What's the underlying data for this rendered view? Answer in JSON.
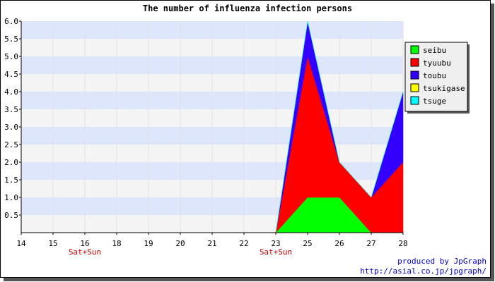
{
  "chart_data": {
    "type": "area",
    "stacked": true,
    "title": "The number of influenza infection persons",
    "x": [
      "14",
      "15",
      "16",
      "18",
      "19",
      "20",
      "21",
      "22",
      "23",
      "25",
      "26",
      "27",
      "28"
    ],
    "weekend_labels": [
      {
        "x": "16",
        "text": "Sat+Sun"
      },
      {
        "x": "23",
        "text": "Sat+Sun"
      }
    ],
    "ylim": [
      0,
      6.0
    ],
    "yticks": [
      "0.5",
      "1.0",
      "1.5",
      "2.0",
      "2.5",
      "3.0",
      "3.5",
      "4.0",
      "4.5",
      "5.0",
      "5.5",
      "6.0"
    ],
    "grid": true,
    "legend_position": "top-right",
    "series": [
      {
        "name": "seibu",
        "color": "#00ff00",
        "values": [
          0,
          0,
          0,
          0,
          0,
          0,
          0,
          0,
          0,
          1,
          1,
          0,
          0
        ]
      },
      {
        "name": "tyuubu",
        "color": "#ff0000",
        "values": [
          0,
          0,
          0,
          0,
          0,
          0,
          0,
          0,
          0,
          4,
          1,
          1,
          2
        ]
      },
      {
        "name": "toubu",
        "color": "#3300ff",
        "values": [
          0,
          0,
          0,
          0,
          0,
          0,
          0,
          0,
          0,
          1,
          0,
          0,
          2
        ]
      },
      {
        "name": "tsukigase",
        "color": "#ffff00",
        "values": [
          0,
          0,
          0,
          0,
          0,
          0,
          0,
          0,
          0,
          0,
          0,
          0,
          0
        ]
      },
      {
        "name": "tsuge",
        "color": "#00ffff",
        "values": [
          0,
          0,
          0,
          0,
          0,
          0,
          0,
          0,
          0,
          0,
          0,
          0,
          0
        ]
      }
    ]
  },
  "credit": {
    "line1": "produced by JpGraph",
    "line2": "http://asial.co.jp/jpgraph/"
  },
  "colors": {
    "band_light": "#dde6fb",
    "band_pale": "#f4f4f4",
    "weekend_label": "#cc0000",
    "credit": "#0000cc"
  }
}
